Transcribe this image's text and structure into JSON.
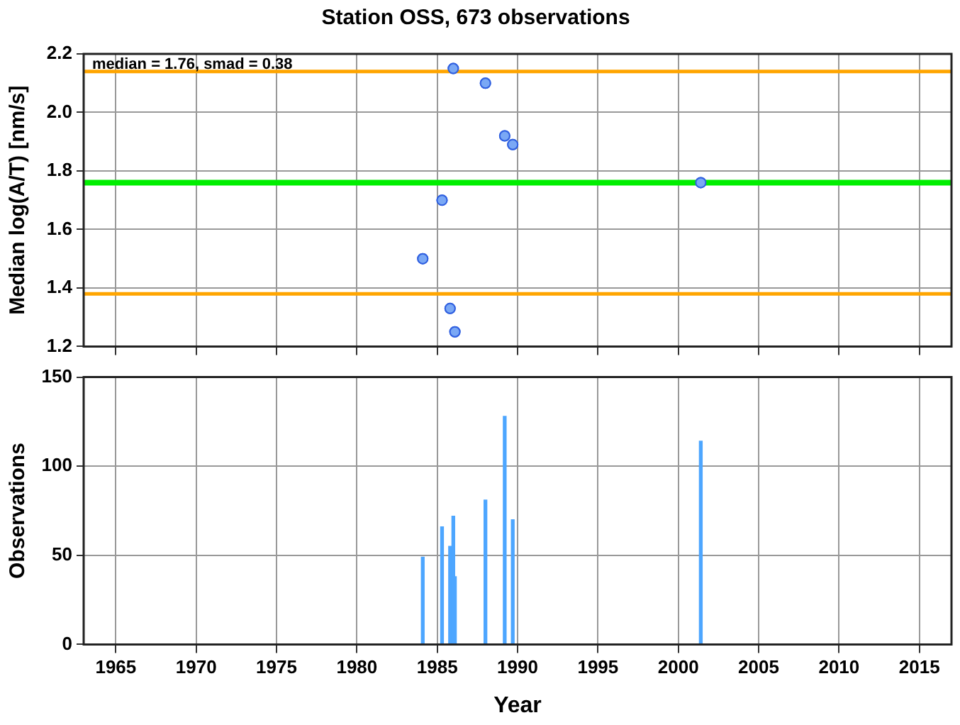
{
  "chart_data": [
    {
      "type": "scatter",
      "title": "Station OSS, 673 observations",
      "ylabel": "Median log(A/T) [nm/s]",
      "x": [
        1984.1,
        1985.3,
        1985.8,
        1986.0,
        1986.1,
        1988.0,
        1989.2,
        1989.7,
        2001.4
      ],
      "series": [
        {
          "color": "#7aa8f5",
          "values": [
            1.5,
            1.7,
            1.33,
            2.15,
            1.25,
            2.1,
            1.92,
            1.89,
            1.76
          ]
        }
      ],
      "xlim": [
        1963,
        2017
      ],
      "xticks": [
        1965,
        1970,
        1975,
        1980,
        1985,
        1990,
        1995,
        2000,
        2005,
        2010,
        2015
      ],
      "ylim": [
        1.2,
        2.2
      ],
      "yticks": [
        {
          "value": 1.2,
          "label": "1.2"
        },
        {
          "value": 1.4,
          "label": "1.4"
        },
        {
          "value": 1.6,
          "label": "1.6"
        },
        {
          "value": 1.8,
          "label": "1.8"
        },
        {
          "value": 2.0,
          "label": "2.0"
        },
        {
          "value": 2.2,
          "label": "2.2"
        }
      ],
      "tick_labels": "y",
      "grid": true,
      "marker": "circle",
      "ref_lines": [
        {
          "axis": "y",
          "value": 2.14,
          "color": "#ffa500"
        },
        {
          "axis": "y",
          "value": 1.76,
          "color": "#00ee00"
        },
        {
          "axis": "y",
          "value": 1.38,
          "color": "#ffa500"
        }
      ],
      "annotations": [
        "median = 1.76, smad = 0.38"
      ]
    },
    {
      "type": "bar",
      "xlabel": "Year",
      "ylabel": "Observations",
      "x": [
        1984.1,
        1985.3,
        1985.8,
        1986.0,
        1986.1,
        1988.0,
        1989.2,
        1989.7,
        2001.4
      ],
      "series": [
        {
          "color": "#4da6ff",
          "values": [
            49,
            66,
            55,
            72,
            38,
            81,
            128,
            70,
            114
          ]
        }
      ],
      "xlim": [
        1963,
        2017
      ],
      "xticks": [
        1965,
        1970,
        1975,
        1980,
        1985,
        1990,
        1995,
        2000,
        2005,
        2010,
        2015
      ],
      "ylim": [
        0,
        150
      ],
      "yticks": [
        0,
        50,
        100,
        150
      ],
      "grid": true
    }
  ]
}
